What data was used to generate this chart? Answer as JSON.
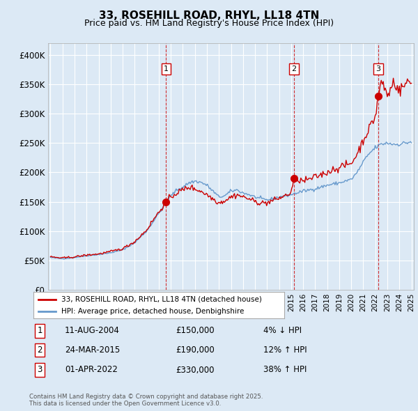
{
  "title": "33, ROSEHILL ROAD, RHYL, LL18 4TN",
  "subtitle": "Price paid vs. HM Land Registry's House Price Index (HPI)",
  "bg_color": "#dce9f5",
  "plot_bg_color": "#dce9f5",
  "line1_color": "#cc0000",
  "line2_color": "#6699cc",
  "ylim": [
    0,
    420000
  ],
  "yticks": [
    0,
    50000,
    100000,
    150000,
    200000,
    250000,
    300000,
    350000,
    400000
  ],
  "ytick_labels": [
    "£0",
    "£50K",
    "£100K",
    "£150K",
    "£200K",
    "£250K",
    "£300K",
    "£350K",
    "£400K"
  ],
  "x_start_year": 1995,
  "x_end_year": 2025,
  "transactions": [
    {
      "label": "1",
      "date_decimal": 2004.61,
      "price": 150000,
      "pct": "4%",
      "dir": "↓",
      "date_str": "11-AUG-2004"
    },
    {
      "label": "2",
      "date_decimal": 2015.23,
      "price": 190000,
      "pct": "12%",
      "dir": "↑",
      "date_str": "24-MAR-2015"
    },
    {
      "label": "3",
      "date_decimal": 2022.25,
      "price": 330000,
      "pct": "38%",
      "dir": "↑",
      "date_str": "01-APR-2022"
    }
  ],
  "legend_line1": "33, ROSEHILL ROAD, RHYL, LL18 4TN (detached house)",
  "legend_line2": "HPI: Average price, detached house, Denbighshire",
  "footer": "Contains HM Land Registry data © Crown copyright and database right 2025.\nThis data is licensed under the Open Government Licence v3.0.",
  "hpi_keypoints": [
    [
      1995.0,
      55000
    ],
    [
      1996.0,
      53000
    ],
    [
      1997.0,
      55000
    ],
    [
      1998.0,
      58000
    ],
    [
      1999.0,
      60000
    ],
    [
      2000.0,
      63000
    ],
    [
      2001.0,
      68000
    ],
    [
      2002.0,
      80000
    ],
    [
      2003.0,
      100000
    ],
    [
      2004.0,
      130000
    ],
    [
      2004.5,
      145000
    ],
    [
      2005.0,
      160000
    ],
    [
      2005.5,
      170000
    ],
    [
      2006.0,
      175000
    ],
    [
      2006.5,
      182000
    ],
    [
      2007.0,
      185000
    ],
    [
      2007.5,
      183000
    ],
    [
      2008.0,
      178000
    ],
    [
      2008.5,
      168000
    ],
    [
      2009.0,
      158000
    ],
    [
      2009.5,
      160000
    ],
    [
      2010.0,
      168000
    ],
    [
      2010.5,
      170000
    ],
    [
      2011.0,
      165000
    ],
    [
      2011.5,
      162000
    ],
    [
      2012.0,
      158000
    ],
    [
      2012.5,
      155000
    ],
    [
      2013.0,
      153000
    ],
    [
      2013.5,
      155000
    ],
    [
      2014.0,
      158000
    ],
    [
      2014.5,
      160000
    ],
    [
      2015.0,
      162000
    ],
    [
      2015.5,
      165000
    ],
    [
      2016.0,
      168000
    ],
    [
      2016.5,
      170000
    ],
    [
      2017.0,
      172000
    ],
    [
      2017.5,
      175000
    ],
    [
      2018.0,
      178000
    ],
    [
      2018.5,
      180000
    ],
    [
      2019.0,
      182000
    ],
    [
      2019.5,
      185000
    ],
    [
      2020.0,
      188000
    ],
    [
      2020.5,
      200000
    ],
    [
      2021.0,
      218000
    ],
    [
      2021.5,
      232000
    ],
    [
      2022.0,
      242000
    ],
    [
      2022.5,
      248000
    ],
    [
      2023.0,
      250000
    ],
    [
      2023.5,
      248000
    ],
    [
      2024.0,
      248000
    ],
    [
      2024.5,
      250000
    ],
    [
      2025.0,
      252000
    ]
  ],
  "red_keypoints": [
    [
      1995.0,
      56000
    ],
    [
      1996.0,
      54000
    ],
    [
      1997.0,
      56000
    ],
    [
      1998.0,
      59000
    ],
    [
      1999.0,
      61000
    ],
    [
      2000.0,
      65000
    ],
    [
      2001.0,
      70000
    ],
    [
      2002.0,
      82000
    ],
    [
      2003.0,
      102000
    ],
    [
      2003.5,
      118000
    ],
    [
      2004.0,
      132000
    ],
    [
      2004.61,
      150000
    ],
    [
      2005.0,
      158000
    ],
    [
      2005.5,
      165000
    ],
    [
      2006.0,
      170000
    ],
    [
      2006.5,
      175000
    ],
    [
      2007.0,
      172000
    ],
    [
      2007.5,
      168000
    ],
    [
      2008.0,
      162000
    ],
    [
      2008.5,
      155000
    ],
    [
      2009.0,
      148000
    ],
    [
      2009.5,
      152000
    ],
    [
      2010.0,
      158000
    ],
    [
      2010.5,
      162000
    ],
    [
      2011.0,
      158000
    ],
    [
      2011.5,
      155000
    ],
    [
      2012.0,
      150000
    ],
    [
      2012.5,
      148000
    ],
    [
      2013.0,
      148000
    ],
    [
      2013.5,
      152000
    ],
    [
      2014.0,
      156000
    ],
    [
      2014.5,
      160000
    ],
    [
      2015.0,
      165000
    ],
    [
      2015.23,
      190000
    ],
    [
      2015.5,
      188000
    ],
    [
      2016.0,
      185000
    ],
    [
      2016.5,
      188000
    ],
    [
      2017.0,
      192000
    ],
    [
      2017.5,
      196000
    ],
    [
      2018.0,
      200000
    ],
    [
      2018.5,
      205000
    ],
    [
      2019.0,
      208000
    ],
    [
      2019.5,
      212000
    ],
    [
      2020.0,
      215000
    ],
    [
      2020.5,
      232000
    ],
    [
      2021.0,
      255000
    ],
    [
      2021.5,
      275000
    ],
    [
      2022.0,
      295000
    ],
    [
      2022.25,
      330000
    ],
    [
      2022.5,
      355000
    ],
    [
      2022.75,
      345000
    ],
    [
      2023.0,
      330000
    ],
    [
      2023.25,
      340000
    ],
    [
      2023.5,
      355000
    ],
    [
      2023.75,
      348000
    ],
    [
      2024.0,
      338000
    ],
    [
      2024.25,
      345000
    ],
    [
      2024.5,
      350000
    ],
    [
      2024.75,
      355000
    ],
    [
      2025.0,
      352000
    ]
  ]
}
